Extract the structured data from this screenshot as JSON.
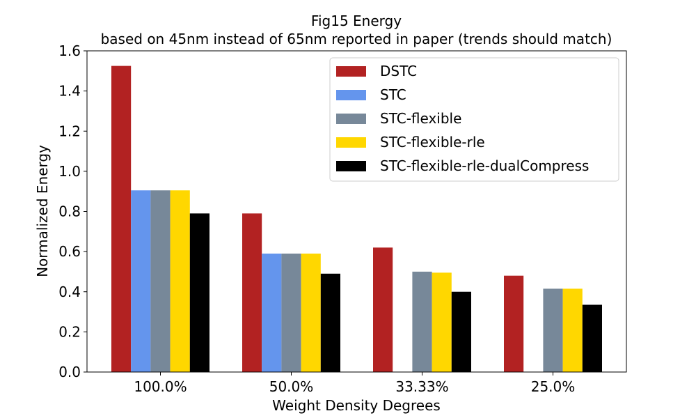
{
  "chart_data": {
    "type": "bar",
    "title": "Fig15 Energy",
    "subtitle": "based on 45nm instead of 65nm reported in paper (trends should match)",
    "xlabel": "Weight Density Degrees",
    "ylabel": "Normalized Energy",
    "ylim": [
      0,
      1.6
    ],
    "yticks": [
      "0.0",
      "0.2",
      "0.4",
      "0.6",
      "0.8",
      "1.0",
      "1.2",
      "1.4",
      "1.6"
    ],
    "grid": false,
    "legend_position": "top-right",
    "categories": [
      "100.0%",
      "50.0%",
      "33.33%",
      "25.0%"
    ],
    "series": [
      {
        "name": "DSTC",
        "color": "#b22222",
        "values": [
          1.525,
          0.79,
          0.62,
          0.48
        ]
      },
      {
        "name": "STC",
        "color": "#6495ed",
        "values": [
          0.905,
          0.59,
          0,
          0
        ]
      },
      {
        "name": "STC-flexible",
        "color": "#778899",
        "values": [
          0.905,
          0.59,
          0.5,
          0.415
        ]
      },
      {
        "name": "STC-flexible-rle",
        "color": "#ffd700",
        "values": [
          0.905,
          0.59,
          0.495,
          0.415
        ]
      },
      {
        "name": "STC-flexible-rle-dualCompress",
        "color": "#000000",
        "values": [
          0.79,
          0.49,
          0.4,
          0.335
        ]
      }
    ]
  }
}
